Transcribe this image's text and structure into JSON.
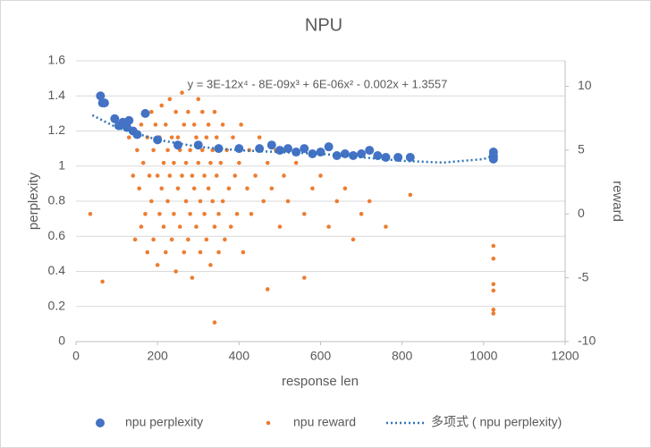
{
  "chart_data": {
    "type": "scatter",
    "title": "NPU",
    "xlabel": "response len",
    "ylabel": "perplexity",
    "y2label": "reward",
    "annotation": "y = 3E-12x⁴ - 8E-09x³ + 6E-06x² - 0.002x + 1.3557",
    "xlim": [
      0,
      1200
    ],
    "xticks": [
      0,
      200,
      400,
      600,
      800,
      1000,
      1200
    ],
    "ylim": [
      0,
      1.6
    ],
    "yticks": [
      0,
      0.2,
      0.4,
      0.6,
      0.8,
      1,
      1.2,
      1.4,
      1.6
    ],
    "y2lim": [
      -10,
      12
    ],
    "y2ticks": [
      -10,
      -5,
      0,
      5,
      10
    ],
    "grid": true,
    "legend": "bottom",
    "series": [
      {
        "name": "npu perplexity",
        "color": "#4472c4",
        "style": "dot",
        "axis": "y",
        "x": [
          60,
          65,
          70,
          95,
          105,
          115,
          125,
          130,
          140,
          150,
          170,
          200,
          250,
          300,
          350,
          400,
          450,
          480,
          500,
          520,
          540,
          560,
          580,
          600,
          620,
          640,
          660,
          680,
          700,
          720,
          740,
          760,
          790,
          820,
          1024,
          1024,
          1024,
          1024
        ],
        "values": [
          1.4,
          1.36,
          1.36,
          1.27,
          1.23,
          1.25,
          1.22,
          1.26,
          1.2,
          1.18,
          1.3,
          1.15,
          1.12,
          1.12,
          1.1,
          1.1,
          1.1,
          1.12,
          1.09,
          1.1,
          1.08,
          1.1,
          1.07,
          1.08,
          1.11,
          1.06,
          1.07,
          1.06,
          1.07,
          1.09,
          1.06,
          1.05,
          1.05,
          1.05,
          1.08,
          1.06,
          1.05,
          1.04
        ]
      },
      {
        "name": "npu reward",
        "color": "#ed7d31",
        "style": "small-dot",
        "axis": "y2",
        "x": [
          150,
          155,
          160,
          160,
          165,
          170,
          175,
          175,
          180,
          185,
          185,
          190,
          190,
          195,
          200,
          200,
          205,
          205,
          210,
          210,
          215,
          215,
          220,
          220,
          225,
          225,
          230,
          230,
          235,
          235,
          240,
          240,
          245,
          245,
          250,
          250,
          255,
          255,
          260,
          260,
          265,
          265,
          270,
          270,
          275,
          275,
          280,
          280,
          285,
          285,
          290,
          290,
          295,
          295,
          300,
          300,
          305,
          305,
          310,
          310,
          315,
          315,
          320,
          320,
          325,
          325,
          330,
          330,
          335,
          335,
          340,
          340,
          345,
          345,
          350,
          350,
          355,
          360,
          360,
          365,
          370,
          375,
          380,
          385,
          390,
          395,
          400,
          405,
          410,
          420,
          425,
          430,
          440,
          450,
          460,
          470,
          480,
          490,
          500,
          510,
          520,
          540,
          560,
          580,
          600,
          620,
          640,
          660,
          680,
          700,
          720,
          760,
          130,
          140,
          145,
          120,
          35,
          65,
          1024,
          1024,
          1024,
          1024,
          1024,
          1024,
          820,
          560,
          470,
          340
        ],
        "values": [
          5,
          2,
          7,
          -1,
          4,
          0,
          6,
          -3,
          3,
          8,
          1,
          -2,
          5,
          7,
          3,
          -4,
          6,
          0,
          8.5,
          2,
          4,
          -1,
          7,
          -3,
          5,
          1,
          3,
          9,
          -2,
          6,
          0,
          4,
          8,
          -4.5,
          2,
          6,
          -1,
          5,
          3,
          9.5,
          -3,
          7,
          1,
          4,
          8,
          -2,
          5,
          0,
          3,
          -5,
          7,
          2,
          -1,
          6,
          4,
          9,
          -3,
          1,
          5,
          8,
          0,
          3,
          6,
          -2,
          2,
          7,
          -4,
          4,
          1,
          5,
          8,
          -1,
          3,
          6,
          0,
          -3,
          4,
          7,
          1,
          -2,
          5,
          2,
          -1,
          6,
          3,
          0,
          4,
          7,
          -3,
          2,
          5,
          0,
          3,
          6,
          1,
          4,
          2,
          5,
          -1,
          3,
          1,
          4,
          0,
          2,
          3,
          -1,
          1,
          2,
          -2,
          0,
          1,
          -1,
          6,
          3,
          -2,
          7,
          0,
          -5.3,
          -2.5,
          -3.5,
          -5.5,
          -6,
          -7.5,
          -7.8,
          1.5,
          -5,
          -5.9,
          -8.5
        ]
      },
      {
        "name": "多项式 ( npu perplexity)",
        "color": "#2e75b6",
        "style": "dotted-line",
        "axis": "y",
        "x": [
          40,
          100,
          200,
          300,
          400,
          500,
          600,
          700,
          800,
          900,
          1000,
          1024
        ],
        "values": [
          1.29,
          1.22,
          1.15,
          1.11,
          1.09,
          1.08,
          1.07,
          1.05,
          1.03,
          1.02,
          1.04,
          1.06
        ]
      }
    ]
  }
}
